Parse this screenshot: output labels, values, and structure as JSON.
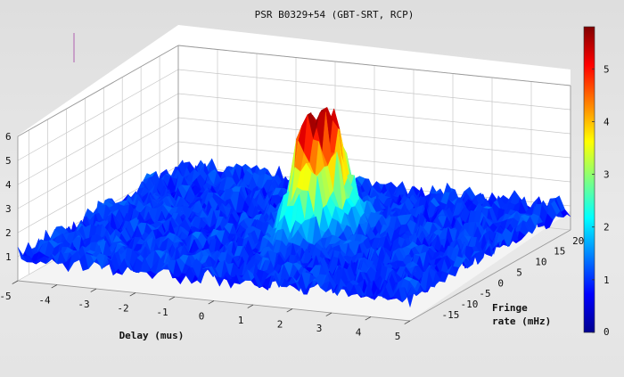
{
  "chart_data": {
    "type": "surface3d",
    "title": "PSR B0329+54 (GBT-SRT, RCP)",
    "xlabel": "Delay (mus)",
    "ylabel_line1": "Fringe",
    "ylabel_line2": "rate (mHz)",
    "x_ticks": [
      "-5",
      "-4",
      "-3",
      "-2",
      "-1",
      "0",
      "1",
      "2",
      "3",
      "4",
      "5"
    ],
    "y_ticks": [
      "-15",
      "-10",
      "-5",
      "0",
      "5",
      "10",
      "15",
      "20"
    ],
    "z_ticks": [
      "1",
      "2",
      "3",
      "4",
      "5",
      "6"
    ],
    "colorbar_ticks": [
      "0",
      "1",
      "2",
      "3",
      "4",
      "5"
    ],
    "xlim": [
      -5,
      5
    ],
    "ylim": [
      -18,
      25
    ],
    "zlim": [
      0,
      6
    ],
    "clim": [
      0,
      5.8
    ],
    "noise_floor": 1.0,
    "peak": {
      "delay": 0.5,
      "fringe_rate": 5,
      "amplitude": 5.6
    },
    "grid": true,
    "colormap": "jet"
  }
}
